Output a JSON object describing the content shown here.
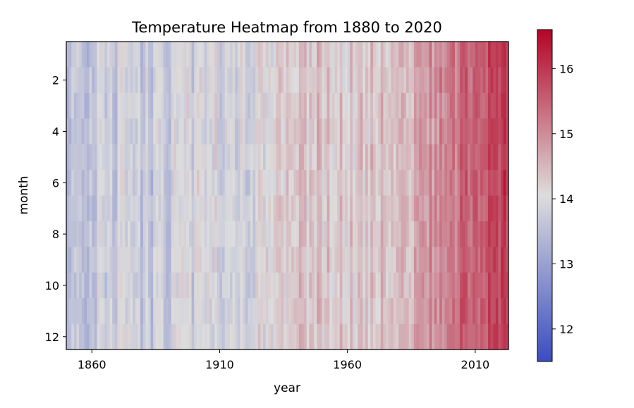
{
  "chart_data": {
    "type": "heatmap",
    "title": "Temperature Heatmap from 1880 to 2020",
    "xlabel": "year",
    "ylabel": "month",
    "x_range": [
      1850,
      2023
    ],
    "y_range": [
      0.5,
      12.5
    ],
    "y_inverted": true,
    "x_ticks": [
      1860,
      1910,
      1960,
      2010
    ],
    "x_tick_labels": [
      "1860",
      "1910",
      "1960",
      "2010"
    ],
    "y_ticks": [
      2,
      4,
      6,
      8,
      10,
      12
    ],
    "y_tick_labels": [
      "2",
      "4",
      "6",
      "8",
      "10",
      "12"
    ],
    "colormap": "coolwarm",
    "color_range": [
      11.5,
      16.6
    ],
    "colorbar": {
      "ticks": [
        12,
        13,
        14,
        15,
        16
      ],
      "tick_labels": [
        "12",
        "13",
        "14",
        "15",
        "16"
      ],
      "placement": "right"
    },
    "colors": {
      "low": "#3b4cc0",
      "mid": "#dddddd",
      "high": "#b40426"
    },
    "trend_by_decade": [
      {
        "decade": "1850s",
        "value": 13.6
      },
      {
        "decade": "1860s",
        "value": 13.8
      },
      {
        "decade": "1870s",
        "value": 13.7
      },
      {
        "decade": "1880s",
        "value": 13.7
      },
      {
        "decade": "1890s",
        "value": 13.8
      },
      {
        "decade": "1900s",
        "value": 13.9
      },
      {
        "decade": "1910s",
        "value": 13.9
      },
      {
        "decade": "1920s",
        "value": 14.0
      },
      {
        "decade": "1930s",
        "value": 14.2
      },
      {
        "decade": "1940s",
        "value": 14.4
      },
      {
        "decade": "1950s",
        "value": 14.3
      },
      {
        "decade": "1960s",
        "value": 14.3
      },
      {
        "decade": "1970s",
        "value": 14.3
      },
      {
        "decade": "1980s",
        "value": 14.6
      },
      {
        "decade": "1990s",
        "value": 15.0
      },
      {
        "decade": "2000s",
        "value": 15.4
      },
      {
        "decade": "2010s",
        "value": 15.8
      },
      {
        "decade": "2020s",
        "value": 16.0
      }
    ]
  }
}
